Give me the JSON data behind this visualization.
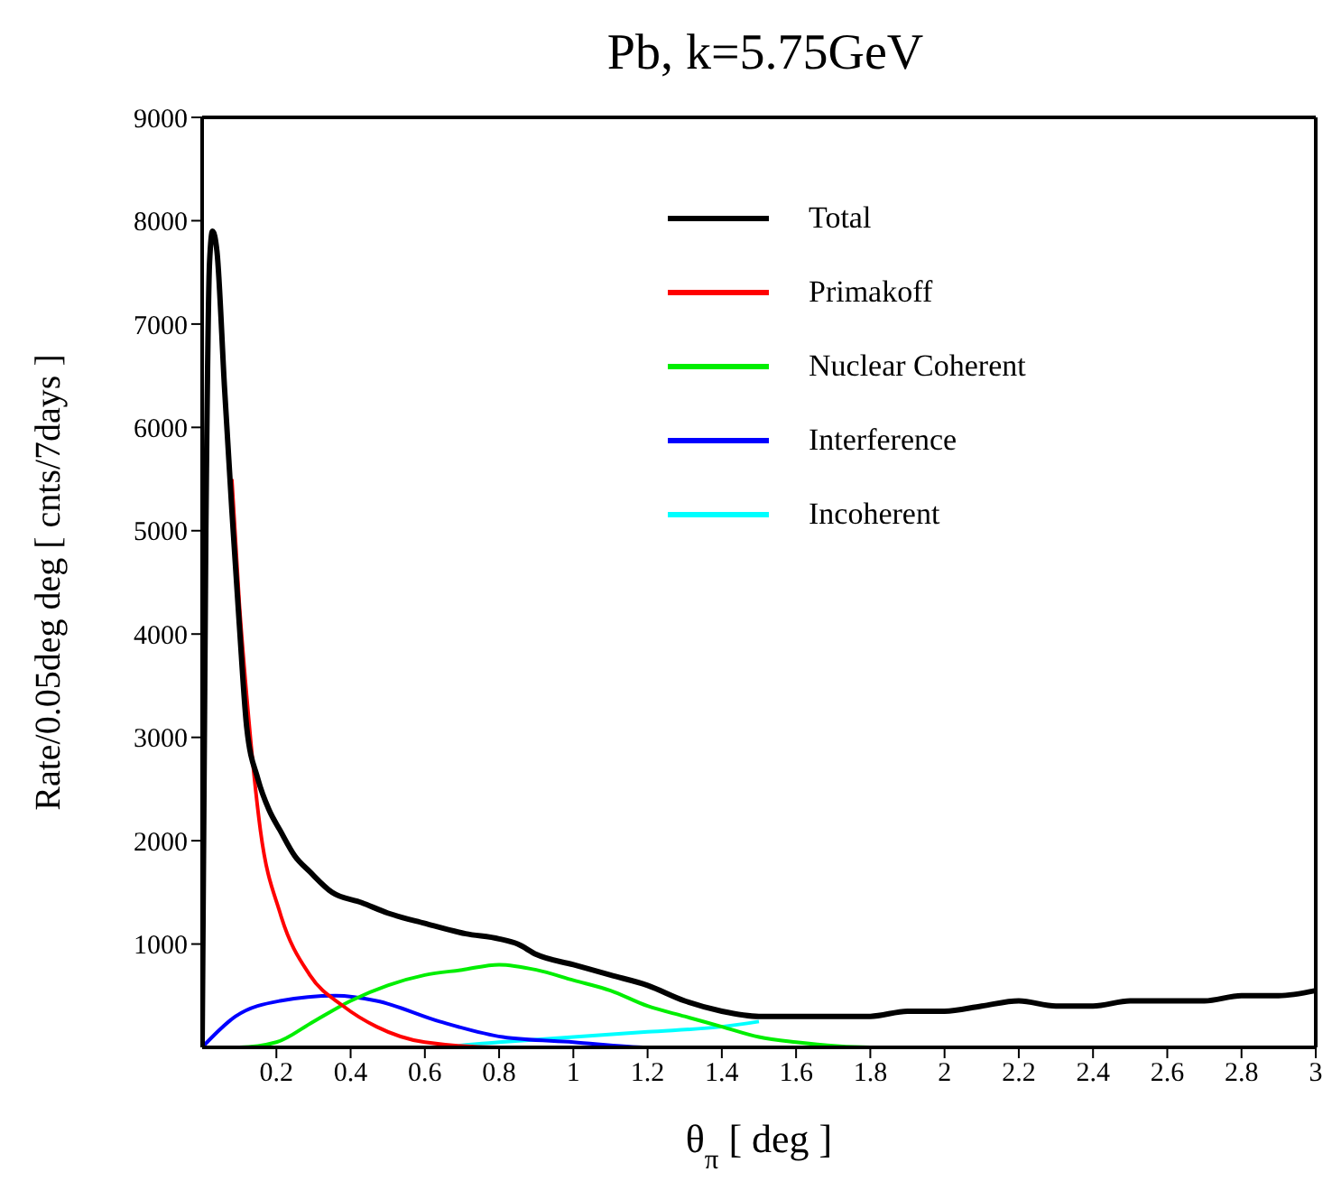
{
  "chart_data": {
    "type": "line",
    "title": "Pb, k=5.75GeV",
    "xlabel": "θ$_{π}$ [ deg ]",
    "ylabel": "Rate/0.05deg deg [ cnts/7days ]",
    "xlim": [
      0,
      3
    ],
    "xticks": [
      0.2,
      0.4,
      0.6,
      0.8,
      1,
      1.2,
      1.4,
      1.6,
      1.8,
      2,
      2.2,
      2.4,
      2.6,
      2.8,
      3
    ],
    "ylim": [
      0,
      9000
    ],
    "yticks": [
      1000,
      2000,
      3000,
      4000,
      5000,
      6000,
      7000,
      8000,
      9000
    ],
    "legend": "top right",
    "marker": "none",
    "line_style": "solid",
    "series": [
      {
        "name": "Total",
        "color": "#000000",
        "x": [
          0,
          0.01,
          0.02,
          0.028,
          0.04,
          0.06,
          0.08,
          0.1,
          0.12,
          0.15,
          0.18,
          0.21,
          0.25,
          0.29,
          0.35,
          0.43,
          0.5,
          0.6,
          0.71,
          0.8,
          0.85,
          0.9,
          1,
          1.1,
          1.2,
          1.3,
          1.4,
          1.5,
          1.6,
          1.7,
          1.8,
          1.9,
          2,
          2.1,
          2.2,
          2.3,
          2.4,
          2.5,
          2.6,
          2.7,
          2.8,
          2.9,
          3
        ],
        "values": [
          0,
          5000,
          7600,
          7900,
          7700,
          6400,
          5200,
          4100,
          3100,
          2600,
          2300,
          2100,
          1850,
          1700,
          1500,
          1400,
          1300,
          1200,
          1100,
          1050,
          1000,
          900,
          800,
          700,
          600,
          450,
          350,
          300,
          300,
          300,
          300,
          350,
          350,
          400,
          450,
          400,
          400,
          450,
          450,
          450,
          500,
          500,
          550
        ]
      },
      {
        "name": "Primakoff",
        "color": "#ff0000",
        "x": [
          0.08,
          0.1,
          0.12,
          0.157,
          0.21,
          0.29,
          0.38,
          0.47,
          0.6,
          0.8,
          1,
          1.3
        ],
        "values": [
          5500,
          4300,
          3400,
          2100,
          1300,
          700,
          400,
          200,
          50,
          0,
          0,
          0
        ]
      },
      {
        "name": "Nuclear Coherent",
        "color": "#00ee00",
        "x": [
          0,
          0.1,
          0.2,
          0.3,
          0.4,
          0.5,
          0.6,
          0.7,
          0.8,
          0.9,
          1,
          1.1,
          1.2,
          1.3,
          1.4,
          1.5,
          1.6,
          1.8,
          2,
          2.2
        ],
        "values": [
          0,
          0,
          50,
          250,
          450,
          600,
          700,
          750,
          800,
          750,
          650,
          550,
          400,
          300,
          200,
          100,
          50,
          0,
          0,
          0
        ]
      },
      {
        "name": "Interference",
        "color": "#0000ff",
        "x": [
          0,
          0.09,
          0.21,
          0.36,
          0.47,
          0.64,
          0.81,
          1,
          1.2,
          1.5,
          1.6
        ],
        "values": [
          0,
          300,
          450,
          500,
          450,
          250,
          100,
          50,
          0,
          0,
          0
        ]
      },
      {
        "name": "Incoherent",
        "color": "#00ffff",
        "x": [
          0,
          0.4,
          0.6,
          0.8,
          1,
          1.2,
          1.4,
          1.5
        ],
        "values": [
          0,
          0,
          0,
          50,
          100,
          150,
          200,
          250
        ]
      }
    ]
  }
}
